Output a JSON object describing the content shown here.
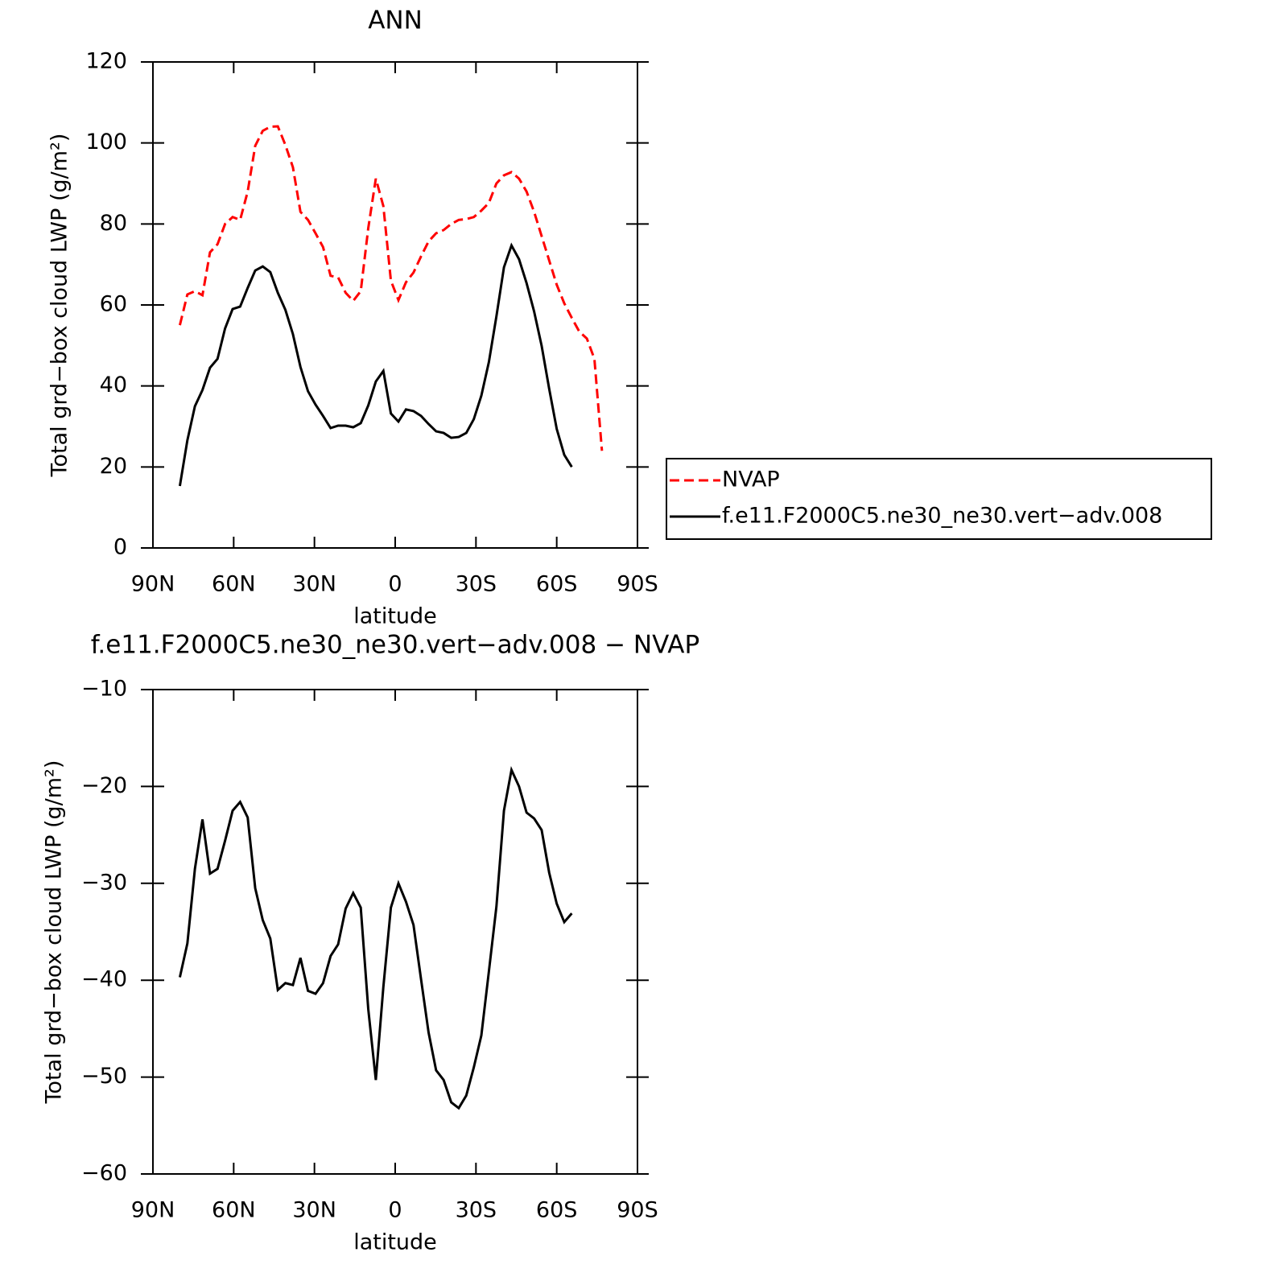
{
  "chart_data": [
    {
      "type": "line",
      "title": "ANN",
      "x_label": "latitude",
      "y_label": "Total grd−box cloud LWP (g/m²)",
      "x": [
        80,
        77.2,
        74.4,
        71.6,
        68.8,
        66,
        63.2,
        60.4,
        57.6,
        54.8,
        52,
        49.2,
        46.4,
        43.6,
        40.8,
        38,
        35.2,
        32.4,
        29.6,
        26.8,
        24,
        21.2,
        18.4,
        15.6,
        12.8,
        10,
        7.2,
        4.4,
        1.6,
        -1.2,
        -4,
        -6.8,
        -9.6,
        -12.4,
        -15.2,
        -18,
        -20.8,
        -23.6,
        -26.4,
        -29.2,
        -32,
        -34.8,
        -37.6,
        -40.4,
        -43.2,
        -46,
        -48.8,
        -51.6,
        -54.4,
        -57.2,
        -60,
        -62.8,
        -65.6,
        -68.4,
        -71.2,
        -74,
        -76.8
      ],
      "series": [
        {
          "name": "NVAP",
          "color": "#ff0000",
          "dash": "dashed",
          "values": [
            55,
            62.6,
            63.4,
            62.4,
            73,
            75,
            80,
            81.7,
            81,
            88,
            99.3,
            103,
            104,
            104.1,
            99.5,
            94,
            83,
            81,
            77.7,
            74.3,
            67.2,
            66.8,
            63,
            61,
            63.4,
            79,
            91.2,
            84.4,
            66,
            61.2,
            65.6,
            68,
            72,
            75.7,
            77.7,
            78.5,
            80,
            81,
            81.2,
            81.7,
            83.3,
            85.2,
            90,
            92,
            92.8,
            91.2,
            88,
            83,
            77,
            71,
            65,
            60.4,
            56.8,
            53.4,
            51.7,
            46.7,
            24
          ]
        },
        {
          "name": "f.e11.F2000C5.ne30_ne30.vert−adv.008",
          "color": "#000000",
          "dash": "solid",
          "values": [
            15.3,
            26.6,
            35,
            39,
            44.5,
            46.7,
            54.2,
            59,
            59.6,
            64.2,
            68.5,
            69.5,
            68.1,
            63,
            58.8,
            52.8,
            44.7,
            38.7,
            35.4,
            32.6,
            29.6,
            30.2,
            30.2,
            29.8,
            30.8,
            35.2,
            41.1,
            43.7,
            33.2,
            31.2,
            34.2,
            33.8,
            32.6,
            30.6,
            28.8,
            28.4,
            27.2,
            27.4,
            28.4,
            31.8,
            37.6,
            45.9,
            57.2,
            69.3,
            74.7,
            71.3,
            65.4,
            58.4,
            49.9,
            39.3,
            29.4,
            23,
            20,
            null,
            null,
            null,
            null
          ]
        }
      ],
      "xlim": [
        90,
        -90
      ],
      "xticks": [
        {
          "value": 90,
          "label": "90N"
        },
        {
          "value": 60,
          "label": "60N"
        },
        {
          "value": 30,
          "label": "30N"
        },
        0,
        {
          "value": -30,
          "label": "30S"
        },
        {
          "value": -60,
          "label": "60S"
        },
        {
          "value": -90,
          "label": "90S"
        }
      ],
      "ylim": [
        0,
        120
      ],
      "yticks": [
        0,
        20,
        40,
        60,
        80,
        100,
        120
      ],
      "legend": "right"
    },
    {
      "type": "line",
      "title": "f.e11.F2000C5.ne30_ne30.vert−adv.008 − NVAP",
      "x_label": "latitude",
      "y_label": "Total grd−box cloud LWP (g/m²)",
      "x": [
        80,
        77.2,
        74.4,
        71.6,
        68.8,
        66,
        63.2,
        60.4,
        57.6,
        54.8,
        52,
        49.2,
        46.4,
        43.6,
        40.8,
        38,
        35.2,
        32.4,
        29.6,
        26.8,
        24,
        21.2,
        18.4,
        15.6,
        12.8,
        10,
        7.2,
        4.4,
        1.6,
        -1.2,
        -4,
        -6.8,
        -9.6,
        -12.4,
        -15.2,
        -18,
        -20.8,
        -23.6,
        -26.4,
        -29.2,
        -32,
        -34.8,
        -37.6,
        -40.4,
        -43.2,
        -46,
        -48.8,
        -51.6,
        -54.4,
        -57.2,
        -60,
        -62.8,
        -65.6
      ],
      "series": [
        {
          "color": "#000000",
          "dash": "solid",
          "values": [
            -39.7,
            -36.2,
            -28.5,
            -23.4,
            -29,
            -28.5,
            -25.6,
            -22.5,
            -21.6,
            -23.2,
            -30.5,
            -33.8,
            -35.7,
            -41,
            -40.3,
            -40.5,
            -37.7,
            -41.1,
            -41.4,
            -40.3,
            -37.5,
            -36.3,
            -32.6,
            -31,
            -32.5,
            -43,
            -50.3,
            -40.7,
            -32.5,
            -30,
            -31.9,
            -34.3,
            -39.9,
            -45.4,
            -49.3,
            -50.3,
            -52.6,
            -53.2,
            -51.9,
            -49,
            -45.7,
            -39.1,
            -32.4,
            -22.5,
            -18.3,
            -20,
            -22.7,
            -23.3,
            -24.5,
            -28.9,
            -32.1,
            -34,
            -33.1
          ]
        }
      ],
      "xlim": [
        90,
        -90
      ],
      "xticks": [
        {
          "value": 90,
          "label": "90N"
        },
        {
          "value": 60,
          "label": "60N"
        },
        {
          "value": 30,
          "label": "30N"
        },
        0,
        {
          "value": -30,
          "label": "30S"
        },
        {
          "value": -60,
          "label": "60S"
        },
        {
          "value": -90,
          "label": "90S"
        }
      ],
      "ylim": [
        -60,
        -10
      ],
      "yticks": [
        {
          "value": -60,
          "label": "−60"
        },
        {
          "value": -50,
          "label": "−50"
        },
        {
          "value": -40,
          "label": "−40"
        },
        {
          "value": -30,
          "label": "−30"
        },
        {
          "value": -20,
          "label": "−20"
        },
        {
          "value": -10,
          "label": "−10"
        }
      ]
    }
  ]
}
